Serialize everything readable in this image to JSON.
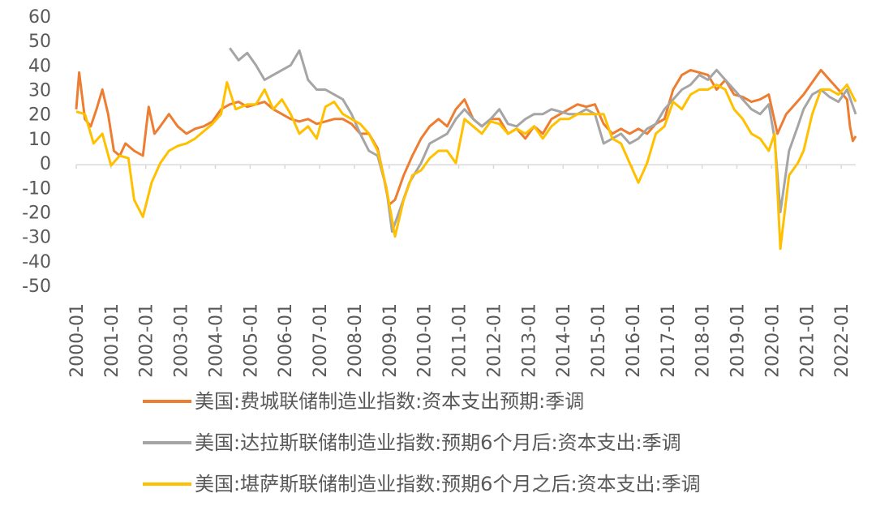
{
  "chart_data": {
    "type": "line",
    "title": "",
    "xlabel": "",
    "ylabel": "",
    "ylim": [
      -50,
      60
    ],
    "yticks": [
      60,
      50,
      40,
      30,
      20,
      10,
      0,
      -10,
      -20,
      -30,
      -40,
      -50
    ],
    "x_range": [
      "2000-01",
      "2022-06"
    ],
    "xticks": [
      "2000-01",
      "2001-01",
      "2002-01",
      "2003-01",
      "2004-01",
      "2005-01",
      "2006-01",
      "2007-01",
      "2008-01",
      "2009-01",
      "2010-01",
      "2011-01",
      "2012-01",
      "2013-01",
      "2014-01",
      "2015-01",
      "2016-01",
      "2017-01",
      "2018-01",
      "2019-01",
      "2020-01",
      "2021-01",
      "2022-01"
    ],
    "grid": false,
    "legend_position": "bottom",
    "series": [
      {
        "name": "美国:费城联储制造业指数:资本支出预期:季调",
        "color": "#ED7D31",
        "points": [
          [
            "2000-01",
            22
          ],
          [
            "2000-02",
            37
          ],
          [
            "2000-04",
            18
          ],
          [
            "2000-06",
            15
          ],
          [
            "2000-08",
            22
          ],
          [
            "2000-10",
            30
          ],
          [
            "2000-12",
            20
          ],
          [
            "2001-02",
            5
          ],
          [
            "2001-04",
            3
          ],
          [
            "2001-06",
            8
          ],
          [
            "2001-09",
            5
          ],
          [
            "2001-12",
            3
          ],
          [
            "2002-02",
            23
          ],
          [
            "2002-04",
            12
          ],
          [
            "2002-06",
            15
          ],
          [
            "2002-09",
            20
          ],
          [
            "2002-12",
            15
          ],
          [
            "2003-03",
            12
          ],
          [
            "2003-06",
            14
          ],
          [
            "2003-09",
            15
          ],
          [
            "2003-12",
            17
          ],
          [
            "2004-03",
            22
          ],
          [
            "2004-06",
            24
          ],
          [
            "2004-09",
            25
          ],
          [
            "2004-12",
            23
          ],
          [
            "2005-03",
            24
          ],
          [
            "2005-06",
            25
          ],
          [
            "2005-09",
            22
          ],
          [
            "2005-12",
            20
          ],
          [
            "2006-03",
            18
          ],
          [
            "2006-06",
            17
          ],
          [
            "2006-09",
            18
          ],
          [
            "2006-12",
            16
          ],
          [
            "2007-03",
            17
          ],
          [
            "2007-06",
            18
          ],
          [
            "2007-09",
            18
          ],
          [
            "2007-12",
            16
          ],
          [
            "2008-03",
            12
          ],
          [
            "2008-06",
            12
          ],
          [
            "2008-09",
            6
          ],
          [
            "2008-11",
            -5
          ],
          [
            "2009-01",
            -17
          ],
          [
            "2009-03",
            -15
          ],
          [
            "2009-06",
            -5
          ],
          [
            "2009-09",
            3
          ],
          [
            "2009-12",
            10
          ],
          [
            "2010-03",
            15
          ],
          [
            "2010-06",
            18
          ],
          [
            "2010-09",
            15
          ],
          [
            "2010-12",
            22
          ],
          [
            "2011-03",
            26
          ],
          [
            "2011-06",
            18
          ],
          [
            "2011-09",
            15
          ],
          [
            "2011-12",
            18
          ],
          [
            "2012-03",
            18
          ],
          [
            "2012-06",
            12
          ],
          [
            "2012-09",
            14
          ],
          [
            "2012-12",
            10
          ],
          [
            "2013-03",
            15
          ],
          [
            "2013-06",
            12
          ],
          [
            "2013-09",
            18
          ],
          [
            "2013-12",
            20
          ],
          [
            "2014-03",
            22
          ],
          [
            "2014-06",
            24
          ],
          [
            "2014-09",
            23
          ],
          [
            "2014-12",
            24
          ],
          [
            "2015-03",
            16
          ],
          [
            "2015-06",
            12
          ],
          [
            "2015-09",
            14
          ],
          [
            "2015-12",
            12
          ],
          [
            "2016-03",
            14
          ],
          [
            "2016-06",
            12
          ],
          [
            "2016-09",
            16
          ],
          [
            "2016-12",
            18
          ],
          [
            "2017-03",
            30
          ],
          [
            "2017-06",
            36
          ],
          [
            "2017-09",
            38
          ],
          [
            "2017-12",
            37
          ],
          [
            "2018-03",
            36
          ],
          [
            "2018-06",
            30
          ],
          [
            "2018-09",
            34
          ],
          [
            "2018-12",
            28
          ],
          [
            "2019-03",
            27
          ],
          [
            "2019-06",
            25
          ],
          [
            "2019-09",
            26
          ],
          [
            "2019-12",
            28
          ],
          [
            "2020-03",
            12
          ],
          [
            "2020-06",
            20
          ],
          [
            "2020-09",
            24
          ],
          [
            "2020-12",
            28
          ],
          [
            "2021-03",
            33
          ],
          [
            "2021-06",
            38
          ],
          [
            "2021-09",
            34
          ],
          [
            "2021-12",
            30
          ],
          [
            "2022-03",
            26
          ],
          [
            "2022-04",
            15
          ],
          [
            "2022-05",
            9
          ],
          [
            "2022-06",
            11
          ]
        ]
      },
      {
        "name": "美国:达拉斯联储制造业指数:预期6个月后:资本支出:季调",
        "color": "#A5A5A5",
        "points": [
          [
            "2004-06",
            47
          ],
          [
            "2004-09",
            42
          ],
          [
            "2004-12",
            45
          ],
          [
            "2005-03",
            40
          ],
          [
            "2005-06",
            34
          ],
          [
            "2005-09",
            36
          ],
          [
            "2005-12",
            38
          ],
          [
            "2006-03",
            40
          ],
          [
            "2006-06",
            46
          ],
          [
            "2006-09",
            34
          ],
          [
            "2006-12",
            30
          ],
          [
            "2007-03",
            30
          ],
          [
            "2007-06",
            28
          ],
          [
            "2007-09",
            26
          ],
          [
            "2007-12",
            20
          ],
          [
            "2008-03",
            12
          ],
          [
            "2008-06",
            5
          ],
          [
            "2008-09",
            3
          ],
          [
            "2008-12",
            -10
          ],
          [
            "2009-02",
            -28
          ],
          [
            "2009-05",
            -18
          ],
          [
            "2009-08",
            -8
          ],
          [
            "2009-12",
            0
          ],
          [
            "2010-03",
            8
          ],
          [
            "2010-06",
            10
          ],
          [
            "2010-09",
            12
          ],
          [
            "2010-12",
            18
          ],
          [
            "2011-03",
            22
          ],
          [
            "2011-06",
            18
          ],
          [
            "2011-09",
            15
          ],
          [
            "2011-12",
            18
          ],
          [
            "2012-03",
            22
          ],
          [
            "2012-06",
            16
          ],
          [
            "2012-09",
            15
          ],
          [
            "2012-12",
            18
          ],
          [
            "2013-03",
            20
          ],
          [
            "2013-06",
            20
          ],
          [
            "2013-09",
            22
          ],
          [
            "2013-12",
            21
          ],
          [
            "2014-03",
            20
          ],
          [
            "2014-06",
            20
          ],
          [
            "2014-09",
            22
          ],
          [
            "2014-12",
            20
          ],
          [
            "2015-03",
            8
          ],
          [
            "2015-06",
            10
          ],
          [
            "2015-09",
            12
          ],
          [
            "2015-12",
            8
          ],
          [
            "2016-03",
            10
          ],
          [
            "2016-06",
            14
          ],
          [
            "2016-09",
            16
          ],
          [
            "2016-12",
            22
          ],
          [
            "2017-03",
            26
          ],
          [
            "2017-06",
            30
          ],
          [
            "2017-09",
            32
          ],
          [
            "2017-12",
            36
          ],
          [
            "2018-03",
            34
          ],
          [
            "2018-06",
            38
          ],
          [
            "2018-09",
            34
          ],
          [
            "2018-12",
            30
          ],
          [
            "2019-03",
            26
          ],
          [
            "2019-06",
            22
          ],
          [
            "2019-09",
            20
          ],
          [
            "2019-12",
            24
          ],
          [
            "2020-02",
            10
          ],
          [
            "2020-04",
            -20
          ],
          [
            "2020-07",
            5
          ],
          [
            "2020-10",
            15
          ],
          [
            "2020-12",
            22
          ],
          [
            "2021-03",
            28
          ],
          [
            "2021-06",
            30
          ],
          [
            "2021-09",
            27
          ],
          [
            "2021-12",
            25
          ],
          [
            "2022-03",
            30
          ],
          [
            "2022-06",
            20
          ]
        ]
      },
      {
        "name": "美国:堪萨斯联储制造业指数:预期6个月之后:资本支出:季调",
        "color": "#FFC000",
        "points": [
          [
            "2000-01",
            21
          ],
          [
            "2000-04",
            20
          ],
          [
            "2000-07",
            8
          ],
          [
            "2000-10",
            12
          ],
          [
            "2001-01",
            -1
          ],
          [
            "2001-04",
            3
          ],
          [
            "2001-07",
            2
          ],
          [
            "2001-09",
            -15
          ],
          [
            "2001-12",
            -22
          ],
          [
            "2002-03",
            -8
          ],
          [
            "2002-06",
            0
          ],
          [
            "2002-09",
            5
          ],
          [
            "2002-12",
            7
          ],
          [
            "2003-03",
            8
          ],
          [
            "2003-06",
            10
          ],
          [
            "2003-09",
            13
          ],
          [
            "2003-12",
            16
          ],
          [
            "2004-03",
            20
          ],
          [
            "2004-05",
            33
          ],
          [
            "2004-08",
            22
          ],
          [
            "2004-12",
            24
          ],
          [
            "2005-03",
            24
          ],
          [
            "2005-06",
            30
          ],
          [
            "2005-09",
            22
          ],
          [
            "2005-12",
            26
          ],
          [
            "2006-03",
            20
          ],
          [
            "2006-06",
            12
          ],
          [
            "2006-09",
            15
          ],
          [
            "2006-12",
            10
          ],
          [
            "2007-03",
            23
          ],
          [
            "2007-06",
            25
          ],
          [
            "2007-09",
            20
          ],
          [
            "2007-12",
            18
          ],
          [
            "2008-03",
            16
          ],
          [
            "2008-06",
            12
          ],
          [
            "2008-09",
            5
          ],
          [
            "2008-12",
            -10
          ],
          [
            "2009-03",
            -30
          ],
          [
            "2009-06",
            -15
          ],
          [
            "2009-09",
            -5
          ],
          [
            "2009-12",
            -3
          ],
          [
            "2010-03",
            2
          ],
          [
            "2010-06",
            5
          ],
          [
            "2010-09",
            5
          ],
          [
            "2010-12",
            0
          ],
          [
            "2011-03",
            18
          ],
          [
            "2011-06",
            15
          ],
          [
            "2011-09",
            12
          ],
          [
            "2011-12",
            17
          ],
          [
            "2012-03",
            16
          ],
          [
            "2012-06",
            12
          ],
          [
            "2012-09",
            14
          ],
          [
            "2012-12",
            12
          ],
          [
            "2013-03",
            15
          ],
          [
            "2013-06",
            10
          ],
          [
            "2013-09",
            15
          ],
          [
            "2013-12",
            18
          ],
          [
            "2014-03",
            18
          ],
          [
            "2014-06",
            20
          ],
          [
            "2014-09",
            20
          ],
          [
            "2014-12",
            20
          ],
          [
            "2015-03",
            20
          ],
          [
            "2015-06",
            10
          ],
          [
            "2015-09",
            8
          ],
          [
            "2015-12",
            0
          ],
          [
            "2016-03",
            -8
          ],
          [
            "2016-06",
            0
          ],
          [
            "2016-09",
            12
          ],
          [
            "2016-12",
            15
          ],
          [
            "2017-03",
            25
          ],
          [
            "2017-06",
            22
          ],
          [
            "2017-09",
            28
          ],
          [
            "2017-12",
            30
          ],
          [
            "2018-03",
            30
          ],
          [
            "2018-06",
            32
          ],
          [
            "2018-09",
            30
          ],
          [
            "2018-12",
            22
          ],
          [
            "2019-03",
            18
          ],
          [
            "2019-06",
            12
          ],
          [
            "2019-09",
            10
          ],
          [
            "2019-12",
            5
          ],
          [
            "2020-02",
            12
          ],
          [
            "2020-04",
            -35
          ],
          [
            "2020-07",
            -5
          ],
          [
            "2020-10",
            0
          ],
          [
            "2020-12",
            5
          ],
          [
            "2021-03",
            20
          ],
          [
            "2021-06",
            30
          ],
          [
            "2021-09",
            30
          ],
          [
            "2021-12",
            28
          ],
          [
            "2022-03",
            32
          ],
          [
            "2022-06",
            25
          ]
        ]
      }
    ]
  }
}
